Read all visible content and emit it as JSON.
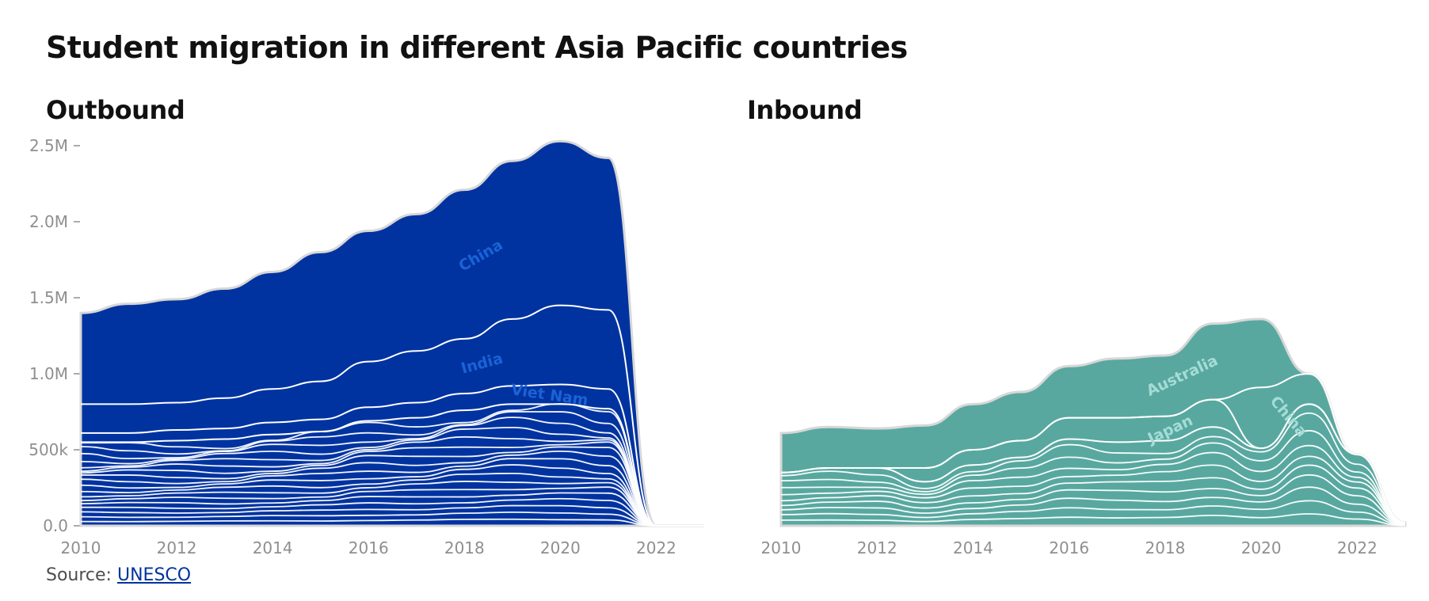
{
  "title": "Student migration in different Asia Pacific countries",
  "source_label": "Source:",
  "source_link": "UNESCO",
  "colors": {
    "outbound": "#0033a0",
    "inbound": "#58a8a0",
    "outbound_label": "#1a63d6",
    "inbound_label": "#a5dcd6",
    "band_edge": "#ffffff"
  },
  "chart_data": [
    {
      "type": "area",
      "subtype": "streamgraph",
      "title": "Outbound",
      "x": [
        2010,
        2011,
        2012,
        2013,
        2014,
        2015,
        2016,
        2017,
        2018,
        2019,
        2020,
        2021,
        2022,
        2023
      ],
      "xticks": [
        "2010",
        "2012",
        "2014",
        "2016",
        "2018",
        "2020",
        "2022"
      ],
      "yticks": [
        "0.0",
        "500k",
        "1.0M",
        "1.5M",
        "2.0M",
        "2.5M"
      ],
      "ylim": [
        0,
        2500000
      ],
      "total": [
        1400000,
        1460000,
        1490000,
        1560000,
        1670000,
        1800000,
        1940000,
        2050000,
        2210000,
        2400000,
        2530000,
        2420000,
        0,
        0
      ],
      "series": [
        {
          "name": "China",
          "values": [
            600000,
            660000,
            680000,
            720000,
            770000,
            850000,
            860000,
            900000,
            980000,
            1040000,
            1080000,
            1000000,
            0,
            0
          ]
        },
        {
          "name": "India",
          "values": [
            190000,
            190000,
            180000,
            200000,
            220000,
            250000,
            300000,
            340000,
            360000,
            440000,
            520000,
            520000,
            0,
            0
          ]
        },
        {
          "name": "Viet Nam",
          "values": [
            60000,
            60000,
            70000,
            70000,
            80000,
            80000,
            90000,
            100000,
            110000,
            120000,
            130000,
            130000,
            0,
            0
          ]
        }
      ],
      "labels": [
        "China",
        "India",
        "Viet Nam"
      ]
    },
    {
      "type": "area",
      "subtype": "streamgraph",
      "title": "Inbound",
      "x": [
        2010,
        2011,
        2012,
        2013,
        2014,
        2015,
        2016,
        2017,
        2018,
        2019,
        2020,
        2021,
        2022,
        2023
      ],
      "xticks": [
        "2010",
        "2012",
        "2014",
        "2016",
        "2018",
        "2020",
        "2022"
      ],
      "ylim": [
        0,
        2500000
      ],
      "total": [
        610000,
        650000,
        640000,
        660000,
        800000,
        880000,
        1050000,
        1100000,
        1120000,
        1330000,
        1360000,
        1000000,
        470000,
        20000
      ],
      "series": [
        {
          "name": "Australia",
          "values": [
            260000,
            270000,
            260000,
            280000,
            300000,
            320000,
            340000,
            390000,
            400000,
            500000,
            450000,
            0,
            0,
            0
          ]
        },
        {
          "name": "China",
          "values": [
            0,
            0,
            0,
            0,
            0,
            0,
            0,
            0,
            0,
            0,
            400000,
            200000,
            0,
            0
          ]
        },
        {
          "name": "Japan",
          "values": [
            0,
            0,
            0,
            90000,
            100000,
            110000,
            140000,
            160000,
            160000,
            180000,
            0,
            0,
            0,
            0
          ]
        }
      ],
      "labels": [
        "Australia",
        "Japan",
        "China"
      ]
    }
  ]
}
